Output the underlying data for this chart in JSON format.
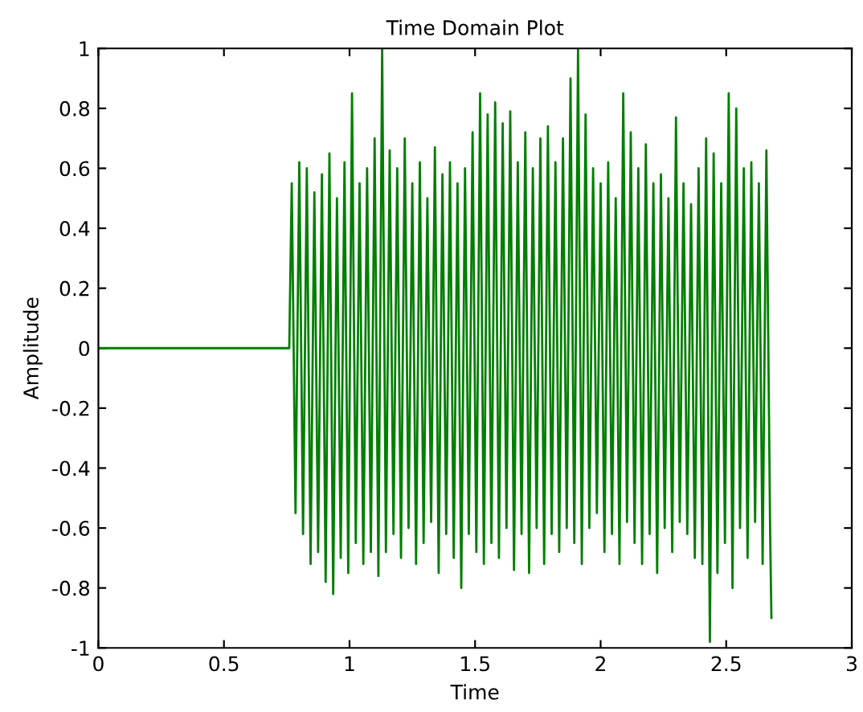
{
  "chart_data": {
    "type": "line",
    "title": "Time Domain Plot",
    "xlabel": "Time",
    "ylabel": "Amplitude",
    "xlim": [
      0,
      3
    ],
    "ylim": [
      -1,
      1
    ],
    "xticks": [
      0,
      0.5,
      1,
      1.5,
      2,
      2.5,
      3
    ],
    "yticks": [
      -1,
      -0.8,
      -0.6,
      -0.4,
      -0.2,
      0,
      0.2,
      0.4,
      0.6,
      0.8,
      1
    ],
    "grid": false,
    "marker": "none",
    "line_style": "solid",
    "series": [
      {
        "color": "#007f00",
        "x": [
          0,
          0.76,
          0.77,
          0.785,
          0.8,
          0.815,
          0.83,
          0.845,
          0.86,
          0.875,
          0.89,
          0.905,
          0.92,
          0.935,
          0.95,
          0.965,
          0.98,
          0.995,
          1.01,
          1.025,
          1.04,
          1.055,
          1.07,
          1.085,
          1.1,
          1.115,
          1.13,
          1.145,
          1.16,
          1.175,
          1.19,
          1.205,
          1.22,
          1.235,
          1.25,
          1.265,
          1.28,
          1.295,
          1.31,
          1.325,
          1.34,
          1.355,
          1.37,
          1.385,
          1.4,
          1.415,
          1.43,
          1.445,
          1.46,
          1.475,
          1.49,
          1.505,
          1.52,
          1.535,
          1.55,
          1.565,
          1.58,
          1.595,
          1.61,
          1.625,
          1.64,
          1.655,
          1.67,
          1.685,
          1.7,
          1.715,
          1.73,
          1.745,
          1.76,
          1.775,
          1.79,
          1.805,
          1.82,
          1.835,
          1.85,
          1.865,
          1.88,
          1.895,
          1.91,
          1.925,
          1.94,
          1.955,
          1.97,
          1.985,
          2.0,
          2.015,
          2.03,
          2.045,
          2.06,
          2.075,
          2.09,
          2.105,
          2.12,
          2.135,
          2.15,
          2.165,
          2.18,
          2.195,
          2.21,
          2.225,
          2.24,
          2.255,
          2.27,
          2.285,
          2.3,
          2.315,
          2.33,
          2.345,
          2.36,
          2.375,
          2.39,
          2.405,
          2.42,
          2.435,
          2.45,
          2.465,
          2.48,
          2.495,
          2.51,
          2.525,
          2.54,
          2.555,
          2.57,
          2.585,
          2.6,
          2.615,
          2.63,
          2.645,
          2.66,
          2.675,
          2.68
        ],
        "values": [
          0,
          0,
          0.55,
          -0.55,
          0.62,
          -0.62,
          0.6,
          -0.72,
          0.52,
          -0.68,
          0.58,
          -0.78,
          0.65,
          -0.82,
          0.5,
          -0.7,
          0.62,
          -0.75,
          0.85,
          -0.65,
          0.55,
          -0.72,
          0.6,
          -0.68,
          0.7,
          -0.76,
          1.0,
          -0.68,
          0.66,
          -0.62,
          0.6,
          -0.7,
          0.7,
          -0.6,
          0.55,
          -0.72,
          0.62,
          -0.65,
          0.5,
          -0.58,
          0.67,
          -0.75,
          0.58,
          -0.62,
          0.62,
          -0.7,
          0.55,
          -0.8,
          0.6,
          -0.62,
          0.72,
          -0.68,
          0.85,
          -0.72,
          0.78,
          -0.65,
          0.82,
          -0.7,
          0.75,
          -0.6,
          0.79,
          -0.74,
          0.62,
          -0.62,
          0.72,
          -0.75,
          0.6,
          -0.6,
          0.7,
          -0.72,
          0.74,
          -0.62,
          0.62,
          -0.68,
          0.7,
          -0.6,
          0.9,
          -0.65,
          1.0,
          -0.72,
          0.78,
          -0.6,
          0.6,
          -0.55,
          0.55,
          -0.68,
          0.62,
          -0.62,
          0.5,
          -0.72,
          0.85,
          -0.58,
          0.72,
          -0.65,
          0.6,
          -0.72,
          0.68,
          -0.62,
          0.55,
          -0.75,
          0.58,
          -0.6,
          0.5,
          -0.68,
          0.77,
          -0.58,
          0.55,
          -0.62,
          0.48,
          -0.7,
          0.6,
          -0.72,
          0.7,
          -0.98,
          0.65,
          -0.75,
          0.55,
          -0.65,
          0.85,
          -0.8,
          0.8,
          -0.6,
          0.6,
          -0.7,
          0.62,
          -0.58,
          0.55,
          -0.72,
          0.66,
          -0.62,
          -0.9
        ]
      }
    ]
  }
}
